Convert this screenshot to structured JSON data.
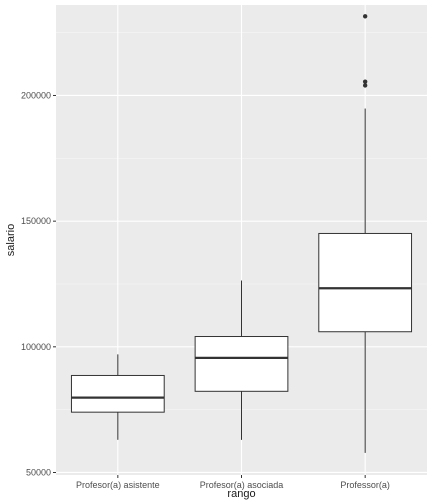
{
  "chart_data": {
    "type": "boxplot",
    "xlabel": "rango",
    "ylabel": "salario",
    "categories": [
      "Profesor(a) asistente",
      "Profesor(a) asociada",
      "Professor(a)"
    ],
    "ylim": [
      49000,
      236000
    ],
    "y_ticks": [
      50000,
      100000,
      150000,
      200000
    ],
    "y_tick_labels": [
      "50000",
      "100000",
      "150000",
      "200000"
    ],
    "grid": true,
    "boxes": [
      {
        "category": "Profesor(a) asistente",
        "whisker_low": 63000,
        "q1": 74000,
        "median": 79800,
        "q3": 88600,
        "whisker_high": 97000,
        "outliers": []
      },
      {
        "category": "Profesor(a) asociada",
        "whisker_low": 63000,
        "q1": 82300,
        "median": 95600,
        "q3": 104100,
        "whisker_high": 126400,
        "outliers": []
      },
      {
        "category": "Professor(a)",
        "whisker_low": 57800,
        "q1": 106000,
        "median": 123300,
        "q3": 145100,
        "whisker_high": 194800,
        "outliers": [
          204000,
          205500,
          231500
        ]
      }
    ],
    "colors": {
      "panel": "#ebebeb",
      "grid_major": "#ffffff",
      "box_fill": "#ffffff",
      "box_line": "#333333",
      "text": "#4d4d4d"
    }
  }
}
